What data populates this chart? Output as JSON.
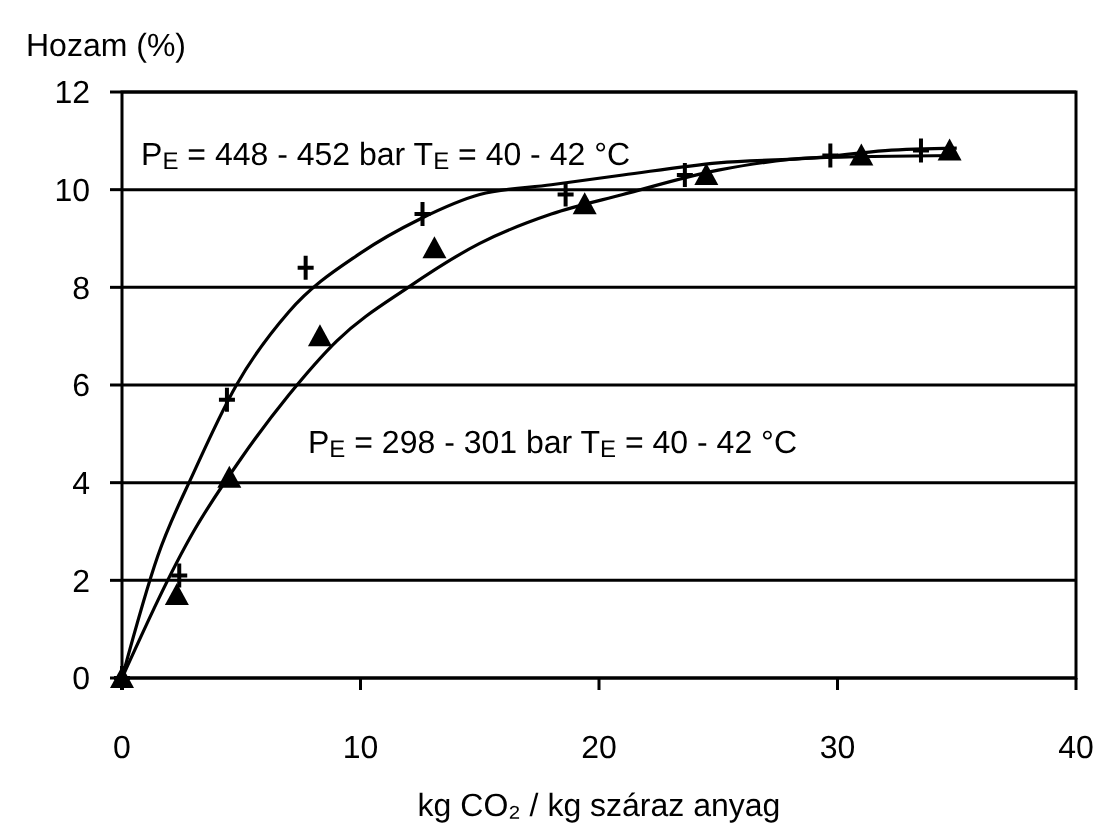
{
  "chart_data": {
    "type": "scatter",
    "ylabel": "Hozam (%)",
    "xlabel": "kg CO₂ / kg száraz anyag",
    "xlim": [
      0,
      40
    ],
    "xticks": [
      0,
      10,
      20,
      30,
      40
    ],
    "ylim": [
      0,
      12
    ],
    "yticks": [
      0,
      2,
      4,
      6,
      8,
      10,
      12
    ],
    "grid": "y",
    "annotations": [
      "P$_{E}$ = 448 - 452 bar   T$_{E}$ = 40 - 42 °C",
      "P$_{E}$ = 298 - 301  bar   T$_{E}$ = 40 - 42 °C"
    ],
    "series": [
      {
        "type": "line",
        "marker": "none",
        "line_style": "solid",
        "color": "#000000",
        "x": [
          0,
          1.5,
          3,
          4.8,
          7,
          10,
          12.5,
          15,
          18,
          21,
          25,
          29,
          32,
          35
        ],
        "values": [
          0,
          2.5,
          4.2,
          6,
          7.5,
          8.7,
          9.4,
          9.9,
          10.1,
          10.3,
          10.55,
          10.65,
          10.8,
          10.85
        ]
      },
      {
        "type": "line",
        "marker": "none",
        "line_style": "solid",
        "color": "#000000",
        "x": [
          0,
          3,
          5,
          7,
          9,
          12,
          15,
          18,
          21,
          25,
          29,
          35
        ],
        "values": [
          0,
          3,
          4.5,
          5.8,
          6.9,
          8,
          8.9,
          9.5,
          9.9,
          10.4,
          10.65,
          10.7
        ]
      },
      {
        "marker": "cross",
        "color": "#000000",
        "x": [
          0,
          2.4,
          4.4,
          7.7,
          12.6,
          18.6,
          23.6,
          29.7,
          33.5
        ],
        "values": [
          0,
          2.1,
          5.7,
          8.4,
          9.5,
          9.9,
          10.3,
          10.7,
          10.8
        ]
      },
      {
        "marker": "triangle",
        "color": "#000000",
        "x": [
          0,
          2.3,
          4.5,
          8.3,
          13.1,
          19.4,
          24.5,
          31,
          34.7
        ],
        "values": [
          0,
          1.7,
          4.1,
          7.0,
          8.8,
          9.7,
          10.3,
          10.7,
          10.8
        ]
      }
    ]
  }
}
